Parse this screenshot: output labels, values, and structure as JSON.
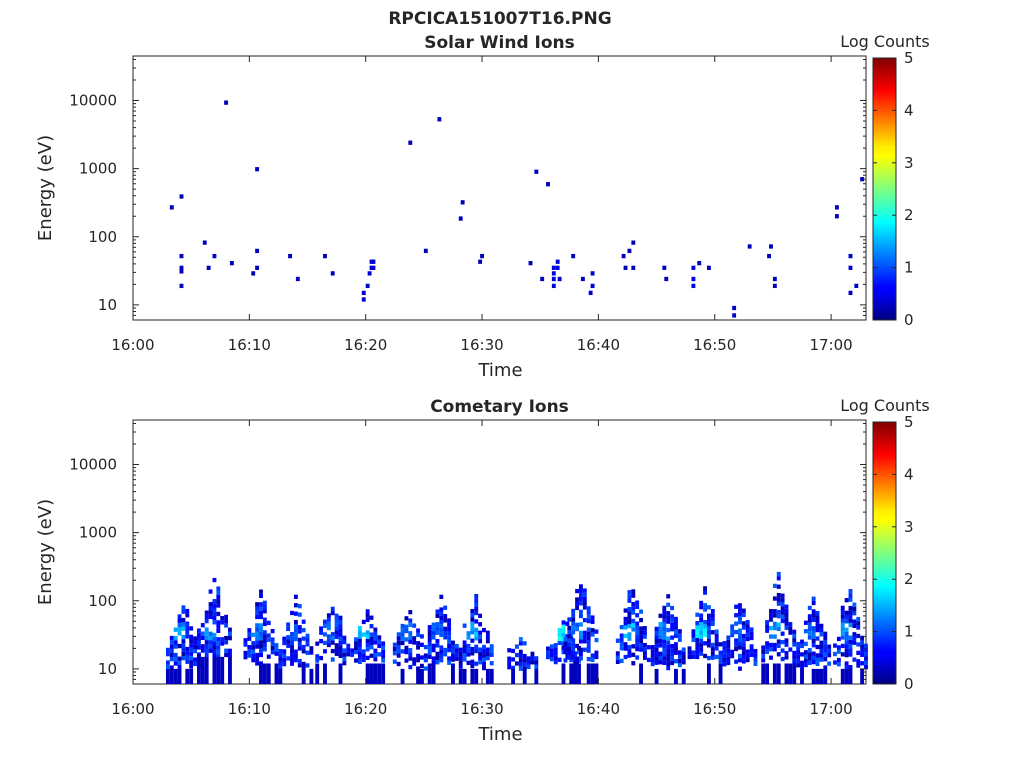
{
  "figure_title": "RPCICA151007T16.PNG",
  "chart_data": [
    {
      "type": "heatmap",
      "title": "Solar Wind Ions",
      "xlabel": "Time",
      "ylabel": "Energy (eV)",
      "yscale": "log",
      "x_range": [
        "16:00",
        "17:03"
      ],
      "ylim": [
        6,
        45000
      ],
      "x_ticks": [
        "16:00",
        "16:10",
        "16:20",
        "16:30",
        "16:40",
        "16:50",
        "17:00"
      ],
      "y_ticks": [
        "10",
        "100",
        "1000",
        "10000"
      ],
      "colorbar": {
        "label": "Log Counts",
        "range": [
          0,
          5
        ],
        "ticks": [
          "0",
          "1",
          "2",
          "3",
          "4",
          "5"
        ]
      },
      "grid": false,
      "cells": [
        {
          "t": "16:03:20",
          "e": 270,
          "v": 0.3
        },
        {
          "t": "16:04:10",
          "e": 390,
          "v": 0.3
        },
        {
          "t": "16:04:10",
          "e": 52,
          "v": 0.3
        },
        {
          "t": "16:04:10",
          "e": 35,
          "v": 0.3
        },
        {
          "t": "16:04:10",
          "e": 31,
          "v": 0.3
        },
        {
          "t": "16:04:10",
          "e": 19,
          "v": 0.3
        },
        {
          "t": "16:06:10",
          "e": 82,
          "v": 0.3
        },
        {
          "t": "16:06:30",
          "e": 35,
          "v": 0.3
        },
        {
          "t": "16:07:00",
          "e": 52,
          "v": 0.3
        },
        {
          "t": "16:08:00",
          "e": 9300,
          "v": 0.3
        },
        {
          "t": "16:08:30",
          "e": 41,
          "v": 0.3
        },
        {
          "t": "16:10:40",
          "e": 980,
          "v": 0.3
        },
        {
          "t": "16:10:40",
          "e": 62,
          "v": 0.3
        },
        {
          "t": "16:10:40",
          "e": 35,
          "v": 0.3
        },
        {
          "t": "16:10:20",
          "e": 29,
          "v": 0.3
        },
        {
          "t": "16:13:30",
          "e": 52,
          "v": 0.3
        },
        {
          "t": "16:14:10",
          "e": 24,
          "v": 0.3
        },
        {
          "t": "16:16:30",
          "e": 52,
          "v": 0.3
        },
        {
          "t": "16:17:10",
          "e": 29,
          "v": 0.3
        },
        {
          "t": "16:19:50",
          "e": 15,
          "v": 0.4
        },
        {
          "t": "16:19:50",
          "e": 12,
          "v": 0.4
        },
        {
          "t": "16:20:10",
          "e": 19,
          "v": 0.4
        },
        {
          "t": "16:20:20",
          "e": 29,
          "v": 0.4
        },
        {
          "t": "16:20:30",
          "e": 35,
          "v": 0.4
        },
        {
          "t": "16:20:30",
          "e": 43,
          "v": 0.4
        },
        {
          "t": "16:20:40",
          "e": 35,
          "v": 0.4
        },
        {
          "t": "16:20:40",
          "e": 43,
          "v": 0.4
        },
        {
          "t": "16:23:50",
          "e": 2400,
          "v": 0.3
        },
        {
          "t": "16:25:10",
          "e": 62,
          "v": 0.3
        },
        {
          "t": "16:26:20",
          "e": 5300,
          "v": 0.3
        },
        {
          "t": "16:28:20",
          "e": 320,
          "v": 0.3
        },
        {
          "t": "16:28:10",
          "e": 185,
          "v": 0.3
        },
        {
          "t": "16:29:50",
          "e": 43,
          "v": 0.3
        },
        {
          "t": "16:30:00",
          "e": 52,
          "v": 0.3
        },
        {
          "t": "16:34:10",
          "e": 41,
          "v": 0.3
        },
        {
          "t": "16:34:40",
          "e": 900,
          "v": 0.3
        },
        {
          "t": "16:35:10",
          "e": 24,
          "v": 0.3
        },
        {
          "t": "16:35:40",
          "e": 590,
          "v": 0.3
        },
        {
          "t": "16:36:10",
          "e": 35,
          "v": 0.5
        },
        {
          "t": "16:36:10",
          "e": 29,
          "v": 0.5
        },
        {
          "t": "16:36:10",
          "e": 24,
          "v": 0.5
        },
        {
          "t": "16:36:10",
          "e": 19,
          "v": 0.5
        },
        {
          "t": "16:36:30",
          "e": 43,
          "v": 0.5
        },
        {
          "t": "16:36:30",
          "e": 35,
          "v": 0.5
        },
        {
          "t": "16:36:40",
          "e": 24,
          "v": 0.4
        },
        {
          "t": "16:37:50",
          "e": 52,
          "v": 0.3
        },
        {
          "t": "16:38:40",
          "e": 24,
          "v": 0.3
        },
        {
          "t": "16:39:30",
          "e": 29,
          "v": 0.4
        },
        {
          "t": "16:39:30",
          "e": 19,
          "v": 0.4
        },
        {
          "t": "16:39:20",
          "e": 15,
          "v": 0.4
        },
        {
          "t": "16:42:10",
          "e": 52,
          "v": 0.3
        },
        {
          "t": "16:42:20",
          "e": 35,
          "v": 0.3
        },
        {
          "t": "16:42:40",
          "e": 62,
          "v": 0.3
        },
        {
          "t": "16:43:00",
          "e": 82,
          "v": 0.3
        },
        {
          "t": "16:43:00",
          "e": 35,
          "v": 0.3
        },
        {
          "t": "16:45:40",
          "e": 35,
          "v": 0.3
        },
        {
          "t": "16:45:50",
          "e": 24,
          "v": 0.3
        },
        {
          "t": "16:48:10",
          "e": 35,
          "v": 0.5
        },
        {
          "t": "16:48:10",
          "e": 24,
          "v": 0.5
        },
        {
          "t": "16:48:10",
          "e": 19,
          "v": 0.5
        },
        {
          "t": "16:48:40",
          "e": 41,
          "v": 0.3
        },
        {
          "t": "16:49:30",
          "e": 35,
          "v": 0.3
        },
        {
          "t": "16:51:40",
          "e": 9,
          "v": 0.4
        },
        {
          "t": "16:51:40",
          "e": 7,
          "v": 0.4
        },
        {
          "t": "16:53:00",
          "e": 72,
          "v": 0.3
        },
        {
          "t": "16:54:50",
          "e": 72,
          "v": 0.3
        },
        {
          "t": "16:54:40",
          "e": 52,
          "v": 0.3
        },
        {
          "t": "16:55:10",
          "e": 24,
          "v": 0.3
        },
        {
          "t": "16:55:10",
          "e": 19,
          "v": 0.3
        },
        {
          "t": "17:00:30",
          "e": 270,
          "v": 0.3
        },
        {
          "t": "17:00:30",
          "e": 200,
          "v": 0.3
        },
        {
          "t": "17:01:40",
          "e": 52,
          "v": 0.4
        },
        {
          "t": "17:01:40",
          "e": 35,
          "v": 0.4
        },
        {
          "t": "17:01:40",
          "e": 15,
          "v": 0.3
        },
        {
          "t": "17:02:10",
          "e": 19,
          "v": 0.3
        },
        {
          "t": "17:02:40",
          "e": 700,
          "v": 0.3
        }
      ]
    },
    {
      "type": "heatmap",
      "title": "Cometary Ions",
      "xlabel": "Time",
      "ylabel": "Energy (eV)",
      "yscale": "log",
      "x_range": [
        "16:00",
        "17:03"
      ],
      "ylim": [
        6,
        45000
      ],
      "x_ticks": [
        "16:00",
        "16:10",
        "16:20",
        "16:30",
        "16:40",
        "16:50",
        "17:00"
      ],
      "y_ticks": [
        "10",
        "100",
        "1000",
        "10000"
      ],
      "colorbar": {
        "label": "Log Counts",
        "range": [
          0,
          5
        ],
        "ticks": [
          "0",
          "1",
          "2",
          "3",
          "4",
          "5"
        ]
      },
      "grid": false,
      "bursts": [
        {
          "t": "16:04:00",
          "e_min": 10,
          "e_max": 120,
          "peak": 1.5
        },
        {
          "t": "16:06:40",
          "e_min": 15,
          "e_max": 250,
          "peak": 1.4
        },
        {
          "t": "16:10:40",
          "e_min": 12,
          "e_max": 160,
          "peak": 1.3
        },
        {
          "t": "16:13:40",
          "e_min": 10,
          "e_max": 140,
          "peak": 1.1
        },
        {
          "t": "16:16:50",
          "e_min": 12,
          "e_max": 120,
          "peak": 1.2
        },
        {
          "t": "16:19:50",
          "e_min": 12,
          "e_max": 90,
          "peak": 1.8
        },
        {
          "t": "16:23:30",
          "e_min": 10,
          "e_max": 110,
          "peak": 1.2
        },
        {
          "t": "16:26:10",
          "e_min": 12,
          "e_max": 150,
          "peak": 1.1
        },
        {
          "t": "16:29:10",
          "e_min": 10,
          "e_max": 180,
          "peak": 1.6
        },
        {
          "t": "16:33:00",
          "e_min": 10,
          "e_max": 40,
          "peak": 1.2
        },
        {
          "t": "16:36:40",
          "e_min": 12,
          "e_max": 70,
          "peak": 2.0
        },
        {
          "t": "16:38:10",
          "e_min": 12,
          "e_max": 280,
          "peak": 1.3
        },
        {
          "t": "16:42:40",
          "e_min": 12,
          "e_max": 230,
          "peak": 1.6
        },
        {
          "t": "16:45:40",
          "e_min": 10,
          "e_max": 170,
          "peak": 1.4
        },
        {
          "t": "16:48:50",
          "e_min": 12,
          "e_max": 180,
          "peak": 1.9
        },
        {
          "t": "16:51:50",
          "e_min": 10,
          "e_max": 130,
          "peak": 1.1
        },
        {
          "t": "16:55:10",
          "e_min": 12,
          "e_max": 280,
          "peak": 1.5
        },
        {
          "t": "16:58:10",
          "e_min": 10,
          "e_max": 140,
          "peak": 1.2
        },
        {
          "t": "17:01:20",
          "e_min": 10,
          "e_max": 200,
          "peak": 1.4
        }
      ]
    }
  ]
}
